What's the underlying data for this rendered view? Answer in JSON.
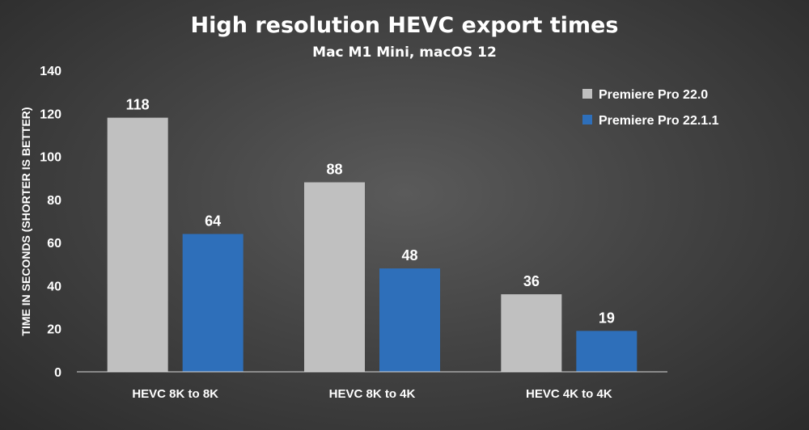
{
  "chart_data": {
    "type": "bar",
    "title": "High resolution HEVC export times",
    "subtitle": "Mac M1 Mini, macOS 12",
    "ylabel": "TIME IN SECONDS (SHORTER IS BETTER)",
    "xlabel": "",
    "ylim": [
      0,
      140
    ],
    "yticks": [
      0,
      20,
      40,
      60,
      80,
      100,
      120,
      140
    ],
    "categories": [
      "HEVC 8K to 8K",
      "HEVC 8K to 4K",
      "HEVC 4K to 4K"
    ],
    "series": [
      {
        "name": "Premiere Pro 22.0",
        "values": [
          118,
          88,
          36
        ],
        "color": "#c0c0c0"
      },
      {
        "name": "Premiere Pro 22.1.1",
        "values": [
          64,
          48,
          19
        ],
        "color": "#2e6fba"
      }
    ],
    "grid": false,
    "legend": "top-right",
    "data_labels": true
  }
}
